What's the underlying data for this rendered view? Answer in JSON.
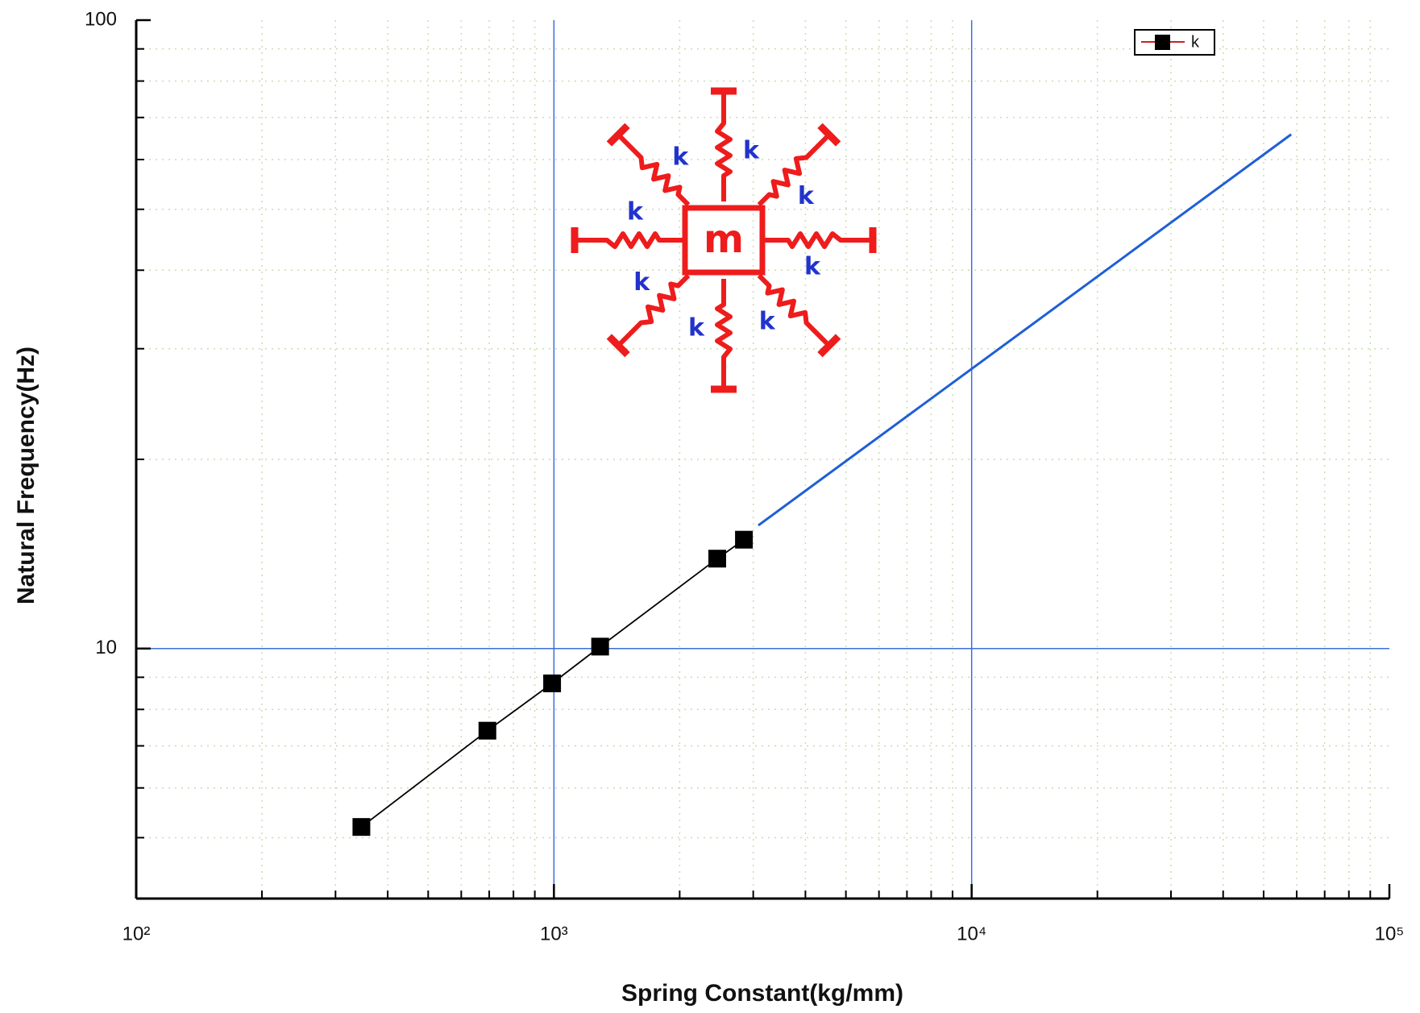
{
  "chart_data": {
    "type": "line",
    "x_label": "Spring Constant(kg/mm)",
    "y_label": "Natural Frequency(Hz)",
    "xscale": "log",
    "yscale": "log",
    "xlim": [
      100,
      100000
    ],
    "ylim": [
      4,
      100
    ],
    "xticks": [
      {
        "value": 100,
        "label": "10²"
      },
      {
        "value": 1000,
        "label": "10³"
      },
      {
        "value": 10000,
        "label": "10⁴"
      },
      {
        "value": 100000,
        "label": "10⁵"
      }
    ],
    "yticks": [
      10,
      100
    ],
    "grid": true,
    "legend": "top right",
    "series": [
      {
        "name": "k",
        "color": "#000000",
        "marker": "square",
        "x": [
          346,
          693,
          990,
          1290,
          2460,
          2850
        ],
        "values": [
          5.2,
          7.4,
          8.8,
          10.07,
          13.9,
          14.9
        ]
      },
      {
        "color": "#1f5fd6",
        "x": [
          3085,
          58200
        ],
        "values": [
          15.7,
          65.8
        ]
      }
    ],
    "annotation_mass": "m",
    "annotation_spring": "k"
  }
}
